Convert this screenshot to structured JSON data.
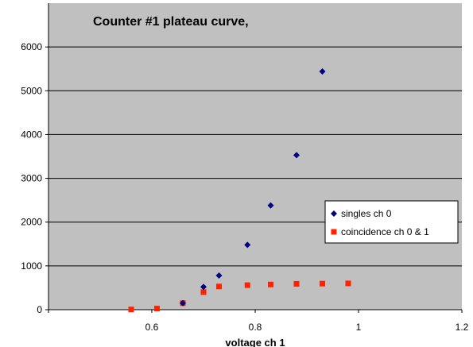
{
  "chart_data": {
    "type": "scatter",
    "title": "Counter #1 plateau curve,",
    "xlabel": "voltage ch 1",
    "ylabel": "",
    "xlim": [
      0.4,
      1.2
    ],
    "ylim": [
      0,
      7000
    ],
    "x_ticks": [
      0.6,
      0.8,
      1,
      1.2
    ],
    "x_tick_labels": [
      "0.6",
      "0.8",
      "1",
      "1.2"
    ],
    "y_ticks": [
      0,
      1000,
      2000,
      3000,
      4000,
      5000,
      6000
    ],
    "y_tick_labels": [
      "0",
      "1000",
      "2000",
      "3000",
      "4000",
      "5000",
      "6000"
    ],
    "grid": "horizontal",
    "legend_position": "right",
    "series": [
      {
        "name": "singles ch 0",
        "color": "#000080",
        "marker": "diamond",
        "x": [
          0.66,
          0.7,
          0.73,
          0.785,
          0.83,
          0.88,
          0.93
        ],
        "y": [
          150,
          520,
          780,
          1480,
          2380,
          3530,
          5440
        ]
      },
      {
        "name": "coincidence ch 0 & 1",
        "color": "#ff2200",
        "marker": "square",
        "x": [
          0.56,
          0.61,
          0.66,
          0.7,
          0.73,
          0.785,
          0.83,
          0.88,
          0.93,
          0.98
        ],
        "y": [
          5,
          25,
          150,
          400,
          530,
          560,
          575,
          590,
          595,
          600
        ]
      }
    ]
  }
}
